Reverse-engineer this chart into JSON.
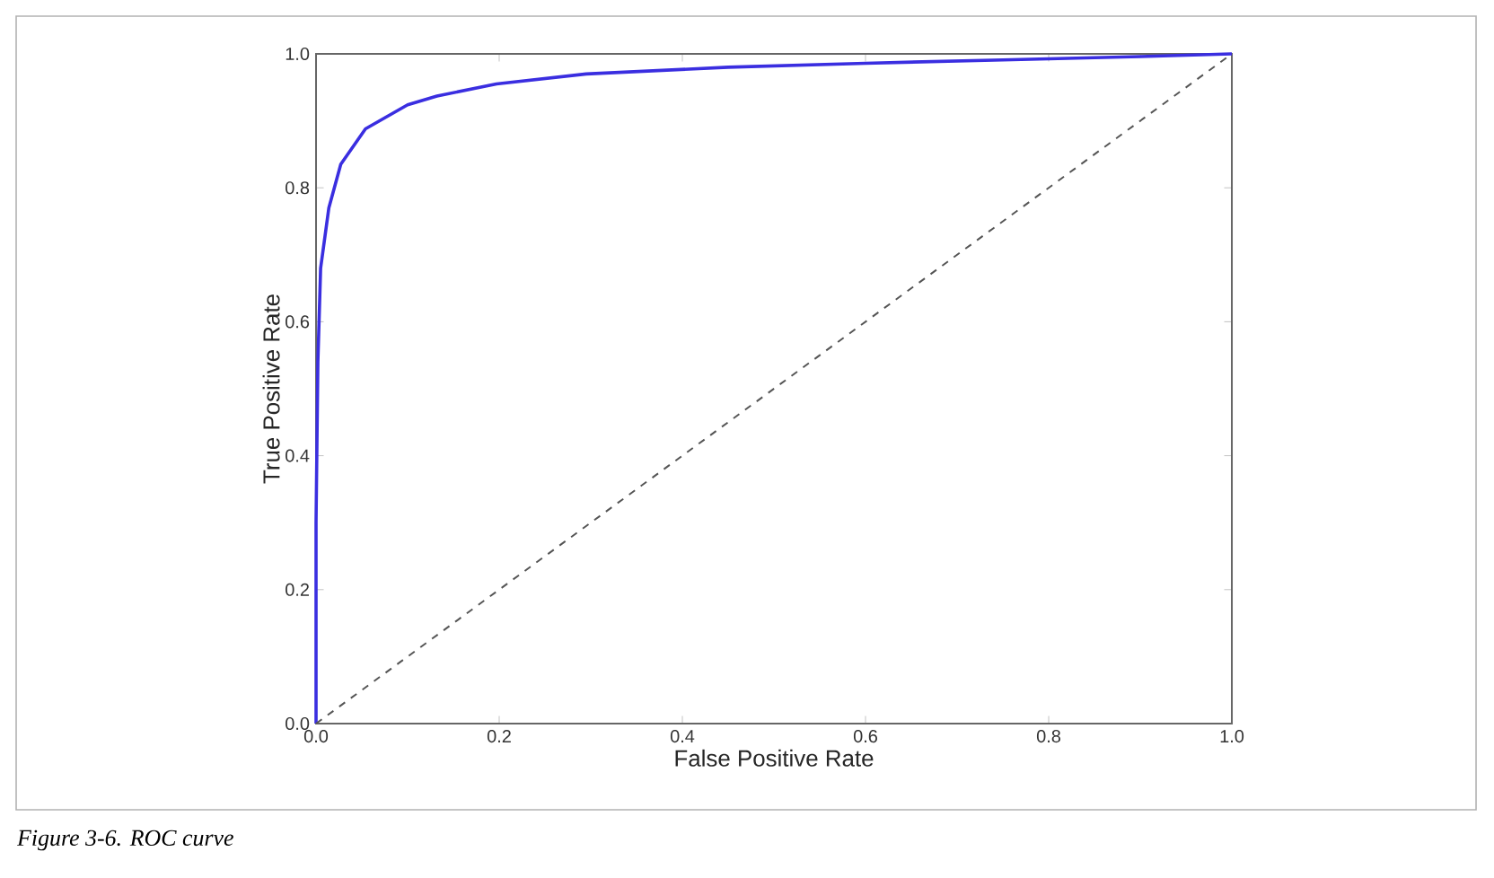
{
  "chart_data": {
    "type": "line",
    "xlabel": "False Positive Rate",
    "ylabel": "True Positive Rate",
    "annotations": [
      "*Figure 3-6. ROC curve*"
    ],
    "xlim": [
      0,
      1
    ],
    "ylim": [
      0,
      1
    ],
    "xticks": [
      {
        "value": 0,
        "label": "0.0"
      },
      {
        "value": 0.2,
        "label": "0.2"
      },
      {
        "value": 0.4,
        "label": "0.4"
      },
      {
        "value": 0.6,
        "label": "0.6"
      },
      {
        "value": 0.8,
        "label": "0.8"
      },
      {
        "value": 1,
        "label": "1.0"
      }
    ],
    "yticks": [
      {
        "value": 0,
        "label": "0.0"
      },
      {
        "value": 0.2,
        "label": "0.2"
      },
      {
        "value": 0.4,
        "label": "0.4"
      },
      {
        "value": 0.6,
        "label": "0.6"
      },
      {
        "value": 0.8,
        "label": "0.8"
      },
      {
        "value": 1,
        "label": "1.0"
      }
    ],
    "grid": false,
    "series": [
      {
        "color": "#3a2ee0",
        "line_style": "solid",
        "x": [
          0,
          0,
          0.002,
          0.005,
          0.014,
          0.027,
          0.054,
          0.1,
          0.132,
          0.197,
          0.295,
          0.45,
          0.6,
          0.75,
          0.9,
          1
        ],
        "values": [
          0,
          0.3,
          0.54,
          0.68,
          0.77,
          0.835,
          0.888,
          0.924,
          0.937,
          0.955,
          0.97,
          0.98,
          0.986,
          0.991,
          0.996,
          1
        ]
      },
      {
        "color": "#555555",
        "line_style": "dashed",
        "x": [
          0,
          1
        ],
        "values": [
          0,
          1
        ]
      }
    ]
  }
}
